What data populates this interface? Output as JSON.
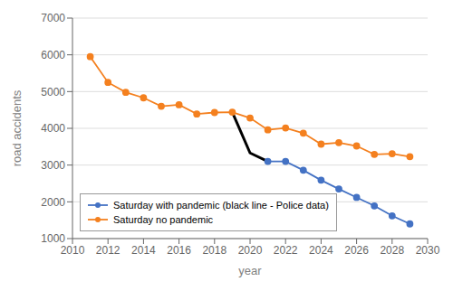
{
  "chart_data": {
    "type": "line",
    "x": [
      2011,
      2012,
      2013,
      2014,
      2015,
      2016,
      2017,
      2018,
      2019,
      2020,
      2021,
      2022,
      2023,
      2024,
      2025,
      2026,
      2027,
      2028,
      2029
    ],
    "series": [
      {
        "name": "Saturday no pandemic",
        "color": "#f4801f",
        "marker": "circle",
        "values": [
          5950,
          5250,
          4980,
          4830,
          4600,
          4640,
          4390,
          4430,
          4440,
          4280,
          3960,
          4010,
          3870,
          3570,
          3610,
          3520,
          3290,
          3310,
          3230
        ]
      },
      {
        "name": "Saturday with pandemic (black line - Police data)",
        "color": "#4472c4",
        "marker": "circle",
        "values": [
          null,
          null,
          null,
          null,
          null,
          null,
          null,
          null,
          null,
          null,
          3100,
          3100,
          2860,
          2590,
          2350,
          2120,
          1890,
          1620,
          1400
        ]
      },
      {
        "color": "#000000",
        "values": [
          null,
          null,
          null,
          null,
          null,
          null,
          null,
          null,
          4440,
          3330,
          3100,
          null,
          null,
          null,
          null,
          null,
          null,
          null,
          null
        ]
      }
    ],
    "xlabel": "year",
    "ylabel": "road accidents",
    "xlim": [
      2010,
      2030
    ],
    "ylim": [
      1000,
      7000
    ],
    "xticks": [
      2010,
      2012,
      2014,
      2016,
      2018,
      2020,
      2022,
      2024,
      2026,
      2028,
      2030
    ],
    "yticks": [
      1000,
      2000,
      3000,
      4000,
      5000,
      6000,
      7000
    ],
    "grid": "y",
    "legend": "lower left"
  }
}
